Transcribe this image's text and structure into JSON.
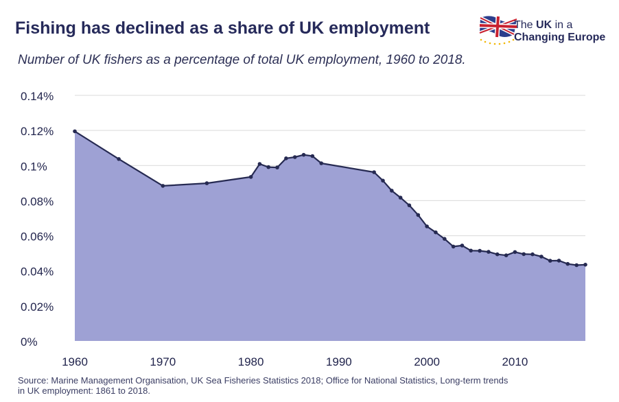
{
  "header": {
    "title": "Fishing has declined as a share of UK employment",
    "subtitle": "Number of UK fishers as a percentage of total UK employment, 1960 to 2018."
  },
  "logo": {
    "line1_prefix": "The ",
    "line1_bold": "UK",
    "line1_suffix": " in a",
    "line2": "Changing Europe"
  },
  "footer": {
    "source_line1": "Source: Marine Management Organisation, UK Sea Fisheries Statistics 2018; Office for National Statistics, Long-term trends",
    "source_line2": "in UK employment: 1861 to 2018."
  },
  "colors": {
    "area_fill": "#9ea1d4",
    "line": "#262a52",
    "grid": "#d9d9d9"
  },
  "chart_data": {
    "type": "area",
    "title": "Fishing has declined as a share of UK employment",
    "xlabel": "",
    "ylabel": "",
    "xlim": [
      1960,
      2018
    ],
    "ylim": [
      0,
      0.14
    ],
    "xticks": [
      1960,
      1970,
      1980,
      1990,
      2000,
      2010
    ],
    "xtick_labels": [
      "1960",
      "1970",
      "1980",
      "1990",
      "2000",
      "2010"
    ],
    "yticks": [
      0,
      0.02,
      0.04,
      0.06,
      0.08,
      0.1,
      0.12,
      0.14
    ],
    "ytick_labels": [
      "0%",
      "0.02%",
      "0.04%",
      "0.06%",
      "0.08%",
      "0.1%",
      "0.12%",
      "0.14%"
    ],
    "grid": true,
    "series": [
      {
        "name": "UK fishers as % of total UK employment",
        "x": [
          1960,
          1965,
          1970,
          1975,
          1980,
          1981,
          1982,
          1983,
          1984,
          1985,
          1986,
          1987,
          1988,
          1994,
          1995,
          1996,
          1997,
          1998,
          1999,
          2000,
          2001,
          2002,
          2003,
          2004,
          2005,
          2006,
          2007,
          2008,
          2009,
          2010,
          2011,
          2012,
          2013,
          2014,
          2015,
          2016,
          2017,
          2018
        ],
        "values": [
          0.1195,
          0.1037,
          0.0884,
          0.0899,
          0.0935,
          0.1009,
          0.0991,
          0.0989,
          0.1041,
          0.1048,
          0.1061,
          0.1054,
          0.1013,
          0.0962,
          0.0914,
          0.0857,
          0.0817,
          0.0773,
          0.0718,
          0.0653,
          0.0619,
          0.0582,
          0.0538,
          0.0544,
          0.0515,
          0.0514,
          0.0508,
          0.0494,
          0.0488,
          0.0507,
          0.0495,
          0.0494,
          0.0481,
          0.0457,
          0.0458,
          0.0439,
          0.0432,
          0.0435
        ]
      }
    ]
  }
}
